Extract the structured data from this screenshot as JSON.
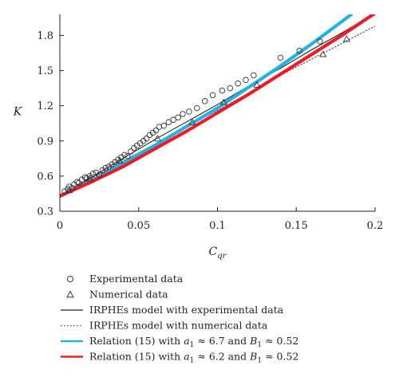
{
  "chart_data": {
    "type": "scatter",
    "xlabel": "C",
    "xlabel_sub": "qr",
    "ylabel": "K",
    "xlim": [
      0,
      0.2
    ],
    "ylim": [
      0.3,
      1.98
    ],
    "xticks": [
      "0",
      "0.05",
      "0.1",
      "0.15",
      "0.2"
    ],
    "xtick_values": [
      0,
      0.05,
      0.1,
      0.15,
      0.2
    ],
    "yticks": [
      "0.3",
      "0.6",
      "0.9",
      "1.2",
      "1.5",
      "1.8"
    ],
    "ytick_values": [
      0.3,
      0.6,
      0.9,
      1.2,
      1.5,
      1.8
    ],
    "grid": false,
    "legend_position": "below",
    "series": [
      {
        "name": "Experimental data",
        "kind": "scatter",
        "marker": "circle",
        "color": "#333333",
        "points": [
          [
            0.003,
            0.47
          ],
          [
            0.005,
            0.49
          ],
          [
            0.006,
            0.51
          ],
          [
            0.008,
            0.5
          ],
          [
            0.009,
            0.53
          ],
          [
            0.011,
            0.55
          ],
          [
            0.012,
            0.54
          ],
          [
            0.014,
            0.57
          ],
          [
            0.016,
            0.59
          ],
          [
            0.017,
            0.58
          ],
          [
            0.019,
            0.6
          ],
          [
            0.021,
            0.62
          ],
          [
            0.023,
            0.63
          ],
          [
            0.025,
            0.61
          ],
          [
            0.027,
            0.65
          ],
          [
            0.029,
            0.67
          ],
          [
            0.031,
            0.68
          ],
          [
            0.033,
            0.7
          ],
          [
            0.035,
            0.72
          ],
          [
            0.037,
            0.74
          ],
          [
            0.039,
            0.76
          ],
          [
            0.041,
            0.78
          ],
          [
            0.043,
            0.77
          ],
          [
            0.045,
            0.81
          ],
          [
            0.047,
            0.84
          ],
          [
            0.049,
            0.86
          ],
          [
            0.051,
            0.88
          ],
          [
            0.053,
            0.9
          ],
          [
            0.055,
            0.92
          ],
          [
            0.057,
            0.95
          ],
          [
            0.059,
            0.97
          ],
          [
            0.061,
            0.99
          ],
          [
            0.063,
            1.02
          ],
          [
            0.066,
            1.03
          ],
          [
            0.069,
            1.06
          ],
          [
            0.072,
            1.08
          ],
          [
            0.075,
            1.1
          ],
          [
            0.078,
            1.13
          ],
          [
            0.082,
            1.15
          ],
          [
            0.087,
            1.18
          ],
          [
            0.092,
            1.24
          ],
          [
            0.097,
            1.29
          ],
          [
            0.103,
            1.33
          ],
          [
            0.108,
            1.35
          ],
          [
            0.113,
            1.39
          ],
          [
            0.118,
            1.42
          ],
          [
            0.123,
            1.46
          ],
          [
            0.14,
            1.61
          ],
          [
            0.152,
            1.67
          ],
          [
            0.165,
            1.75
          ]
        ]
      },
      {
        "name": "Numerical data",
        "kind": "scatter",
        "marker": "triangle",
        "color": "#333333",
        "points": [
          [
            0.006,
            0.48
          ],
          [
            0.019,
            0.58
          ],
          [
            0.038,
            0.73
          ],
          [
            0.062,
            0.92
          ],
          [
            0.084,
            1.06
          ],
          [
            0.104,
            1.23
          ],
          [
            0.125,
            1.38
          ],
          [
            0.167,
            1.64
          ],
          [
            0.182,
            1.77
          ]
        ]
      },
      {
        "name": "IRPHEs model with experimental data",
        "kind": "line",
        "style": "solid",
        "color": "#222222",
        "points": [
          [
            0,
            0.43
          ],
          [
            0.02,
            0.59
          ],
          [
            0.04,
            0.75
          ],
          [
            0.06,
            0.91
          ],
          [
            0.08,
            1.06
          ],
          [
            0.1,
            1.21
          ],
          [
            0.12,
            1.37
          ],
          [
            0.14,
            1.52
          ],
          [
            0.16,
            1.68
          ],
          [
            0.18,
            1.83
          ],
          [
            0.2,
            1.99
          ]
        ]
      },
      {
        "name": "IRPHEs model with numerical data",
        "kind": "line",
        "style": "dotted",
        "color": "#444444",
        "points": [
          [
            0,
            0.43
          ],
          [
            0.02,
            0.58
          ],
          [
            0.04,
            0.73
          ],
          [
            0.06,
            0.87
          ],
          [
            0.08,
            1.02
          ],
          [
            0.1,
            1.16
          ],
          [
            0.12,
            1.31
          ],
          [
            0.14,
            1.46
          ],
          [
            0.16,
            1.6
          ],
          [
            0.18,
            1.74
          ],
          [
            0.2,
            1.88
          ]
        ]
      },
      {
        "name": "Relation (15) with a1 ≈ 6.7 and B1 ≈ 0.52",
        "kind": "line",
        "style": "solid",
        "color": "#1fb4e4",
        "points": [
          [
            0,
            0.43
          ],
          [
            0.02,
            0.56
          ],
          [
            0.04,
            0.71
          ],
          [
            0.06,
            0.86
          ],
          [
            0.08,
            1.02
          ],
          [
            0.1,
            1.18
          ],
          [
            0.12,
            1.36
          ],
          [
            0.14,
            1.54
          ],
          [
            0.16,
            1.73
          ],
          [
            0.18,
            1.93
          ],
          [
            0.185,
            1.98
          ]
        ]
      },
      {
        "name": "Relation (15) with a1 ≈ 6.2 and B1 ≈ 0.52",
        "kind": "line",
        "style": "solid",
        "color": "#ee1b24",
        "points": [
          [
            0,
            0.43
          ],
          [
            0.02,
            0.55
          ],
          [
            0.04,
            0.68
          ],
          [
            0.06,
            0.83
          ],
          [
            0.08,
            0.98
          ],
          [
            0.1,
            1.14
          ],
          [
            0.12,
            1.3
          ],
          [
            0.14,
            1.47
          ],
          [
            0.16,
            1.64
          ],
          [
            0.18,
            1.81
          ],
          [
            0.2,
            1.99
          ]
        ]
      }
    ],
    "legend": [
      {
        "marker": "circle",
        "text": "Experimental data"
      },
      {
        "marker": "triangle",
        "text": "Numerical data"
      },
      {
        "marker": "line-solid",
        "color": "#222222",
        "text": "IRPHEs model with experimental data"
      },
      {
        "marker": "line-dotted",
        "color": "#444444",
        "text": "IRPHEs model with numerical data"
      },
      {
        "marker": "line-thick",
        "color": "#1fb4e4",
        "text_before": "Relation (15) with ",
        "a_sym": "a",
        "a_sub": "1",
        "a_val": " ≈ 6.7 and ",
        "b_sym": "B",
        "b_sub": "1",
        "b_val": " ≈ 0.52"
      },
      {
        "marker": "line-thick",
        "color": "#ee1b24",
        "text_before": "Relation (15) with ",
        "a_sym": "a",
        "a_sub": "1",
        "a_val": " ≈ 6.2 and ",
        "b_sym": "B",
        "b_sub": "1",
        "b_val": " ≈ 0.52"
      }
    ]
  }
}
